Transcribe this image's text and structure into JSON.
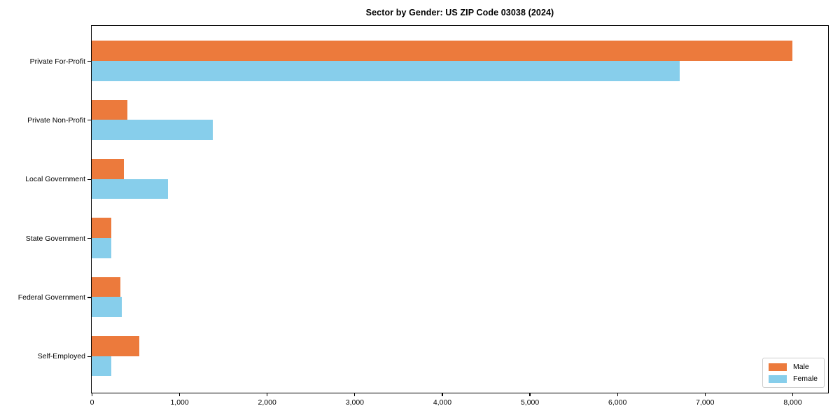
{
  "chart_data": {
    "type": "bar",
    "orientation": "horizontal",
    "title": "Sector by Gender: US ZIP Code 03038 (2024)",
    "categories": [
      "Private For-Profit",
      "Private Non-Profit",
      "Local Government",
      "State Government",
      "Federal Government",
      "Self-Employed"
    ],
    "series": [
      {
        "name": "Male",
        "color": "#ec7a3c",
        "values": [
          8000,
          410,
          370,
          220,
          325,
          545
        ]
      },
      {
        "name": "Female",
        "color": "#87ceeb",
        "values": [
          6710,
          1380,
          870,
          220,
          340,
          220
        ]
      }
    ],
    "xlabel": "",
    "ylabel": "",
    "xlim": [
      0,
      8400
    ],
    "x_ticks": [
      0,
      1000,
      2000,
      3000,
      4000,
      5000,
      6000,
      7000,
      8000
    ],
    "x_tick_labels": [
      "0",
      "1,000",
      "2,000",
      "3,000",
      "4,000",
      "5,000",
      "6,000",
      "7,000",
      "8,000"
    ],
    "grid": false,
    "legend": {
      "position": "lower-right",
      "entries": [
        "Male",
        "Female"
      ]
    },
    "colors": {
      "axis": "#000000",
      "background": "#ffffff",
      "legend_border": "#cccccc"
    }
  }
}
